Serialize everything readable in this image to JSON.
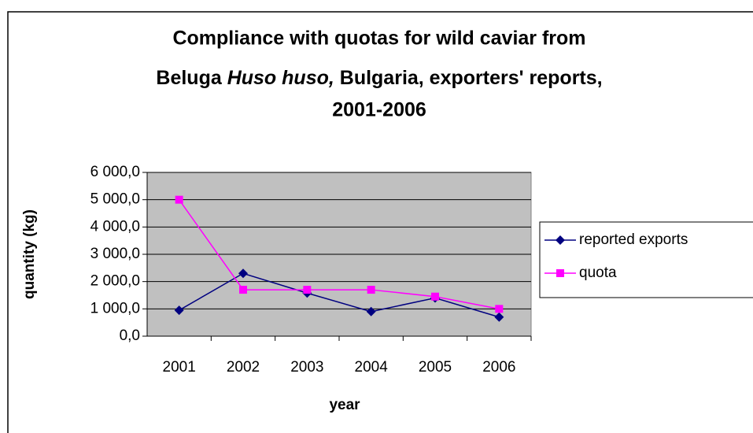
{
  "chart_data": {
    "type": "line",
    "title": [
      "Compliance with quotas for wild caviar from",
      "Beluga",
      "Huso huso,",
      "Bulgaria, exporters' reports,",
      "2001-2006"
    ],
    "x_label": "year",
    "y_label": "quantity (kg)",
    "categories": [
      "2001",
      "2002",
      "2003",
      "2004",
      "2005",
      "2006"
    ],
    "series": [
      {
        "name": "reported exports",
        "color": "#000080",
        "marker": "diamond",
        "values": [
          950,
          2300,
          1580,
          900,
          1400,
          700
        ]
      },
      {
        "name": "quota",
        "color": "#ff00ff",
        "marker": "square",
        "values": [
          5000,
          1700,
          1700,
          1700,
          1450,
          1000
        ]
      }
    ],
    "ylim": [
      0,
      6000
    ],
    "yticks": [
      {
        "value": 0,
        "label": "0,0"
      },
      {
        "value": 1000,
        "label": "1 000,0"
      },
      {
        "value": 2000,
        "label": "2 000,0"
      },
      {
        "value": 3000,
        "label": "3 000,0"
      },
      {
        "value": 4000,
        "label": "4 000,0"
      },
      {
        "value": 5000,
        "label": "5 000,0"
      },
      {
        "value": 6000,
        "label": "6 000,0"
      }
    ],
    "grid": true,
    "legend": "right"
  }
}
